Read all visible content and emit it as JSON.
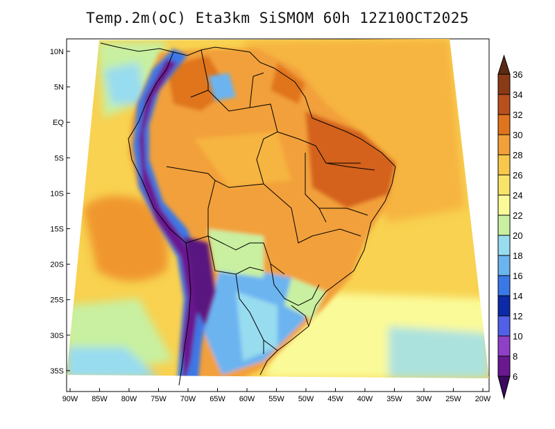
{
  "title": "Temp.2m(oC) Eta3km SiSMOM 60h 12Z10OCT2025",
  "map": {
    "variable": "Temp.2m",
    "units": "oC",
    "model": "Eta3km SiSMOM",
    "forecast_hour": "60h",
    "valid_time": "12Z10OCT2025",
    "lat_labels": [
      "10N",
      "5N",
      "EQ",
      "5S",
      "10S",
      "15S",
      "20S",
      "25S",
      "30S",
      "35S"
    ],
    "lon_labels": [
      "90W",
      "85W",
      "80W",
      "75W",
      "70W",
      "65W",
      "60W",
      "55W",
      "50W",
      "45W",
      "40W",
      "35W",
      "30W",
      "25W",
      "20W"
    ]
  },
  "colorbar": {
    "labels": [
      "36",
      "34",
      "32",
      "30",
      "28",
      "26",
      "24",
      "22",
      "20",
      "18",
      "16",
      "14",
      "12",
      "10",
      "8",
      "6"
    ],
    "colors": [
      "#5a2a12",
      "#8b3a16",
      "#b8501e",
      "#e0741e",
      "#f2a03a",
      "#f8c84a",
      "#f8e46a",
      "#fafa98",
      "#c8f0a0",
      "#98dcf0",
      "#6cb4f0",
      "#3a78e8",
      "#0c2aa8",
      "#5060e8",
      "#9040c8",
      "#6a1890",
      "#3a0a60"
    ]
  }
}
